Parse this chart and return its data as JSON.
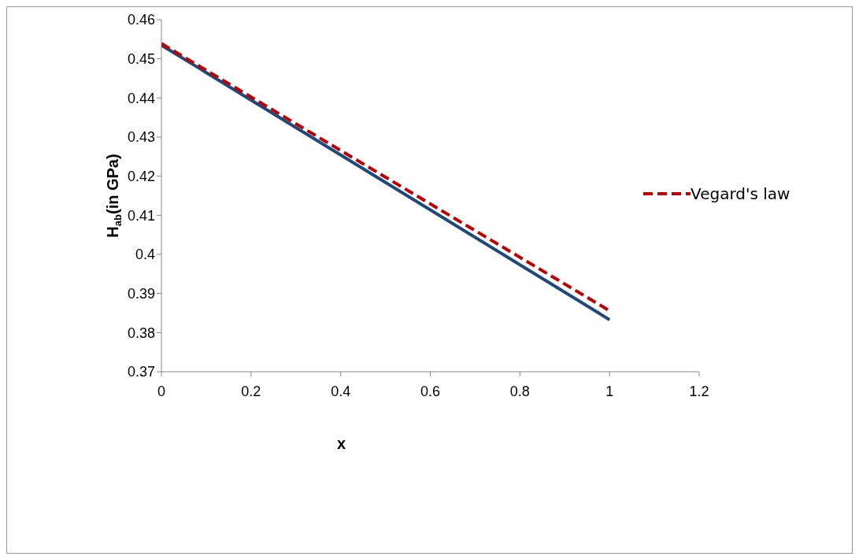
{
  "chart_data": {
    "type": "line",
    "xlabel": "x",
    "ylabel": "H$_{ab}$(in GPa)",
    "x": [
      0,
      1
    ],
    "xlim": [
      0,
      1.2
    ],
    "xticks": [
      0,
      0.2,
      0.4,
      0.6,
      0.8,
      1,
      1.2
    ],
    "ylim": [
      0.37,
      0.46
    ],
    "yticks": [
      0.37,
      0.38,
      0.39,
      0.4,
      0.41,
      0.42,
      0.43,
      0.44,
      0.45,
      0.46
    ],
    "grid": false,
    "legend": "right",
    "marker": "none",
    "series": [
      {
        "color": "#1f497d",
        "line_style": "solid",
        "values": [
          0.4535,
          0.3833
        ]
      },
      {
        "name": "Vegard's law",
        "color": "#c00000",
        "line_style": "dashed",
        "values": [
          0.4539,
          0.3856
        ]
      }
    ]
  }
}
